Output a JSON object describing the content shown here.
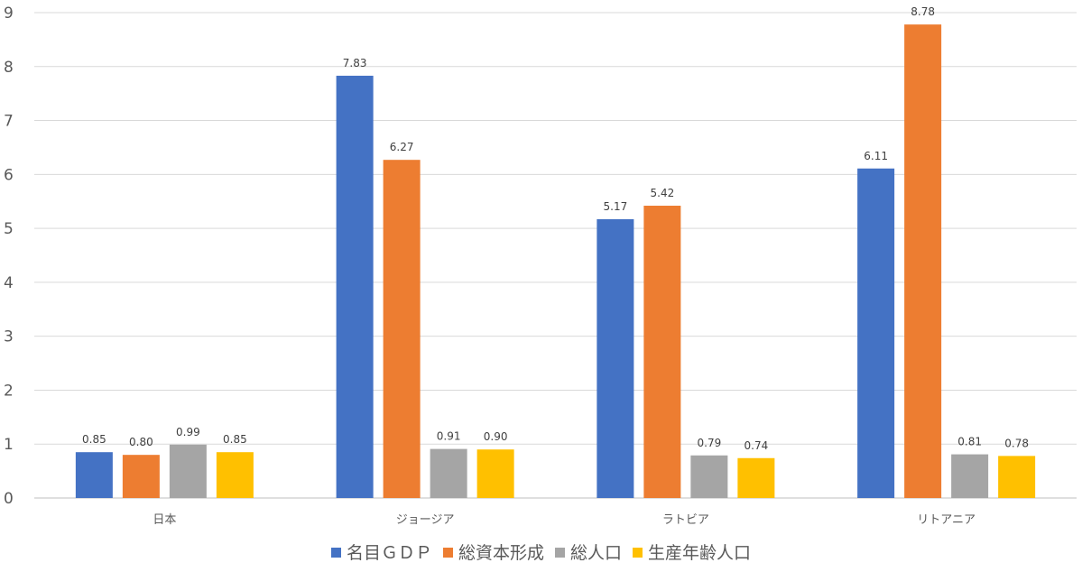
{
  "chart_data": {
    "type": "bar",
    "categories": [
      "日本",
      "ジョージア",
      "ラトビア",
      "リトアニア"
    ],
    "series": [
      {
        "name": "名目ＧＤＰ",
        "color": "#4472C4",
        "values": [
          0.85,
          7.83,
          5.17,
          6.11
        ]
      },
      {
        "name": "総資本形成",
        "color": "#ED7D31",
        "values": [
          0.8,
          6.27,
          5.42,
          8.78
        ]
      },
      {
        "name": "総人口",
        "color": "#A5A5A5",
        "values": [
          0.99,
          0.91,
          0.79,
          0.81
        ]
      },
      {
        "name": "生産年齢人口",
        "color": "#FFC000",
        "values": [
          0.85,
          0.9,
          0.74,
          0.78
        ]
      }
    ],
    "ylim": [
      0,
      9
    ],
    "yticks": [
      "0",
      "1",
      "2",
      "3",
      "4",
      "5",
      "6",
      "7",
      "8",
      "9"
    ],
    "grid": true,
    "legend": "bottom",
    "title": "",
    "xlabel": "",
    "ylabel": ""
  }
}
